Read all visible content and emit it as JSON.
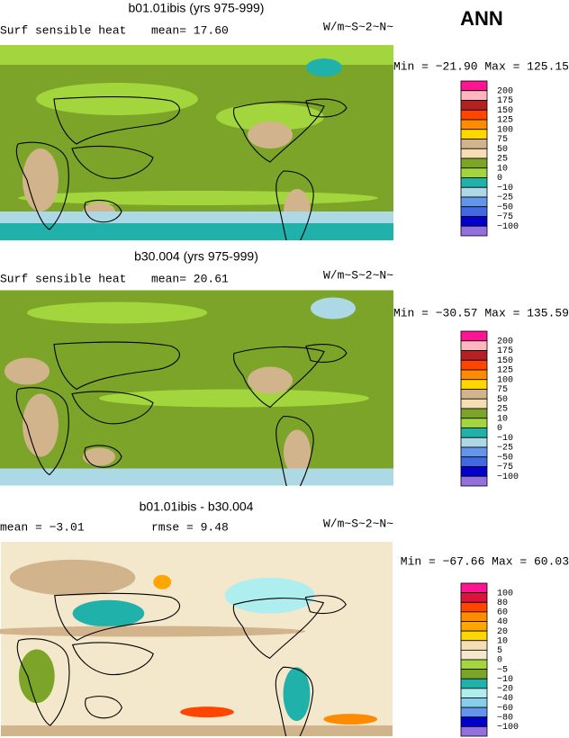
{
  "header": {
    "season": "ANN"
  },
  "panels": [
    {
      "title": "b01.01ibis (yrs 975-999)",
      "left_text": "Surf sensible heat",
      "mid_text": "mean=  17.60",
      "units": "W/m~S~2~N~",
      "range": "Min = −21.90 Max = 125.15",
      "colorbar": {
        "labels": [
          "200",
          "175",
          "150",
          "125",
          "100",
          "75",
          "50",
          "25",
          "10",
          "0",
          "−10",
          "−25",
          "−50",
          "−75",
          "−100"
        ],
        "colors": [
          "#ff1493",
          "#ffb6c1",
          "#b22222",
          "#ff4500",
          "#ff8c00",
          "#ffd700",
          "#d2b48c",
          "#f5deb3",
          "#7ba428",
          "#a3d63c",
          "#20b2aa",
          "#add8e6",
          "#6495ed",
          "#4169e1",
          "#0000cd",
          "#9370db"
        ]
      }
    },
    {
      "title": "b30.004 (yrs 975-999)",
      "left_text": "Surf sensible heat",
      "mid_text": "mean=  20.61",
      "units": "W/m~S~2~N~",
      "range": "Min = −30.57 Max = 135.59",
      "colorbar": {
        "labels": [
          "200",
          "175",
          "150",
          "125",
          "100",
          "75",
          "50",
          "25",
          "10",
          "0",
          "−10",
          "−25",
          "−50",
          "−75",
          "−100"
        ],
        "colors": [
          "#ff1493",
          "#ffb6c1",
          "#b22222",
          "#ff4500",
          "#ff8c00",
          "#ffd700",
          "#d2b48c",
          "#f5deb3",
          "#7ba428",
          "#a3d63c",
          "#20b2aa",
          "#add8e6",
          "#6495ed",
          "#4169e1",
          "#0000cd",
          "#9370db"
        ]
      }
    },
    {
      "title": "b01.01ibis - b30.004",
      "left_text": "mean =   −3.01",
      "mid_text": "rmse =   9.48",
      "units": "W/m~S~2~N~",
      "range": "Min = −67.66 Max =  60.03",
      "colorbar": {
        "labels": [
          "100",
          "80",
          "60",
          "40",
          "20",
          "10",
          "5",
          "0",
          "−5",
          "−10",
          "−20",
          "−40",
          "−60",
          "−80",
          "−100"
        ],
        "colors": [
          "#ff1493",
          "#dc143c",
          "#ff4500",
          "#ff8c00",
          "#ffa500",
          "#ffd700",
          "#f5deb3",
          "#f3e8cc",
          "#a3d63c",
          "#7ba428",
          "#20b2aa",
          "#afeeee",
          "#87ceeb",
          "#6495ed",
          "#0000cd",
          "#9370db"
        ]
      }
    }
  ]
}
